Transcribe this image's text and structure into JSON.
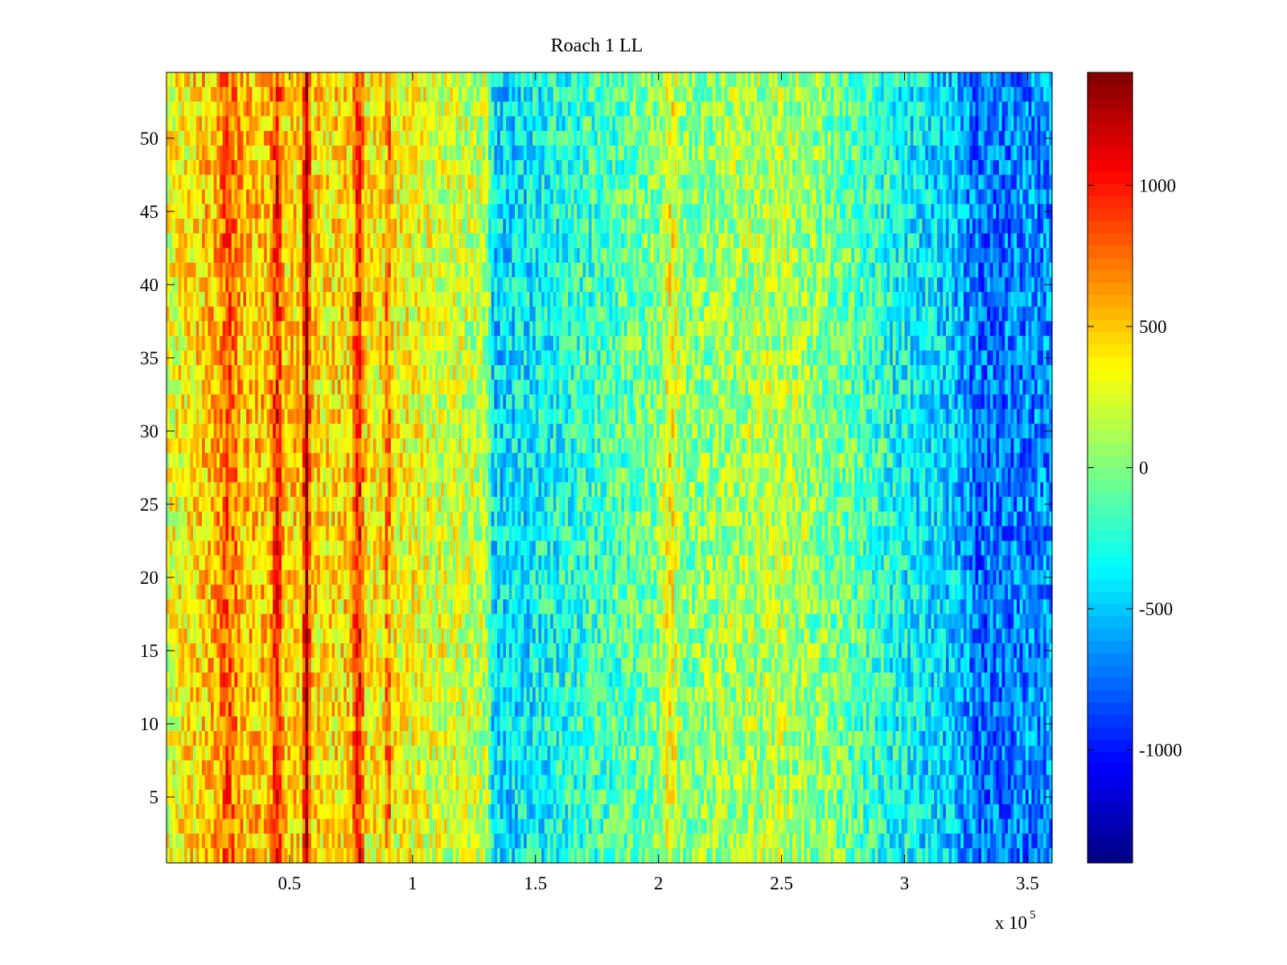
{
  "chart_data": {
    "type": "heatmap",
    "title": "Roach 1 LL",
    "xlabel": "",
    "ylabel": "",
    "x_multiplier_label": "x 10",
    "x_multiplier_exponent": "5",
    "xlim": [
      0,
      3.6
    ],
    "ylim": [
      0.5,
      54.5
    ],
    "rows": 54,
    "x_ticks": [
      {
        "value": 0.5,
        "label": "0.5"
      },
      {
        "value": 1,
        "label": "1"
      },
      {
        "value": 1.5,
        "label": "1.5"
      },
      {
        "value": 2,
        "label": "2"
      },
      {
        "value": 2.5,
        "label": "2.5"
      },
      {
        "value": 3,
        "label": "3"
      },
      {
        "value": 3.5,
        "label": "3.5"
      }
    ],
    "y_ticks": [
      {
        "value": 5,
        "label": "5"
      },
      {
        "value": 10,
        "label": "10"
      },
      {
        "value": 15,
        "label": "15"
      },
      {
        "value": 20,
        "label": "20"
      },
      {
        "value": 25,
        "label": "25"
      },
      {
        "value": 30,
        "label": "30"
      },
      {
        "value": 35,
        "label": "35"
      },
      {
        "value": 40,
        "label": "40"
      },
      {
        "value": 45,
        "label": "45"
      },
      {
        "value": 50,
        "label": "50"
      }
    ],
    "colorbar": {
      "colormap": "jet",
      "range": [
        -1400,
        1400
      ],
      "ticks": [
        {
          "value": 1000,
          "label": "1000"
        },
        {
          "value": 500,
          "label": "500"
        },
        {
          "value": 0,
          "label": "0"
        },
        {
          "value": -500,
          "label": "-500"
        },
        {
          "value": -1000,
          "label": "-1000"
        }
      ]
    },
    "column_profile_x": [
      0.0,
      0.2,
      0.25,
      0.3,
      0.42,
      0.45,
      0.48,
      0.55,
      0.57,
      0.59,
      0.65,
      0.75,
      0.78,
      0.81,
      0.88,
      0.9,
      0.92,
      1.0,
      1.2,
      1.3,
      1.33,
      1.5,
      1.8,
      2.0,
      2.05,
      2.1,
      2.3,
      2.5,
      2.8,
      2.95,
      3.2,
      3.3,
      3.6
    ],
    "column_profile_values": [
      250,
      550,
      850,
      550,
      500,
      1000,
      450,
      450,
      1400,
      450,
      400,
      450,
      1100,
      400,
      350,
      800,
      350,
      300,
      200,
      150,
      -450,
      -350,
      -150,
      0,
      350,
      0,
      100,
      150,
      -100,
      -300,
      -500,
      -750,
      -650
    ],
    "noise_amplitude": 330
  }
}
